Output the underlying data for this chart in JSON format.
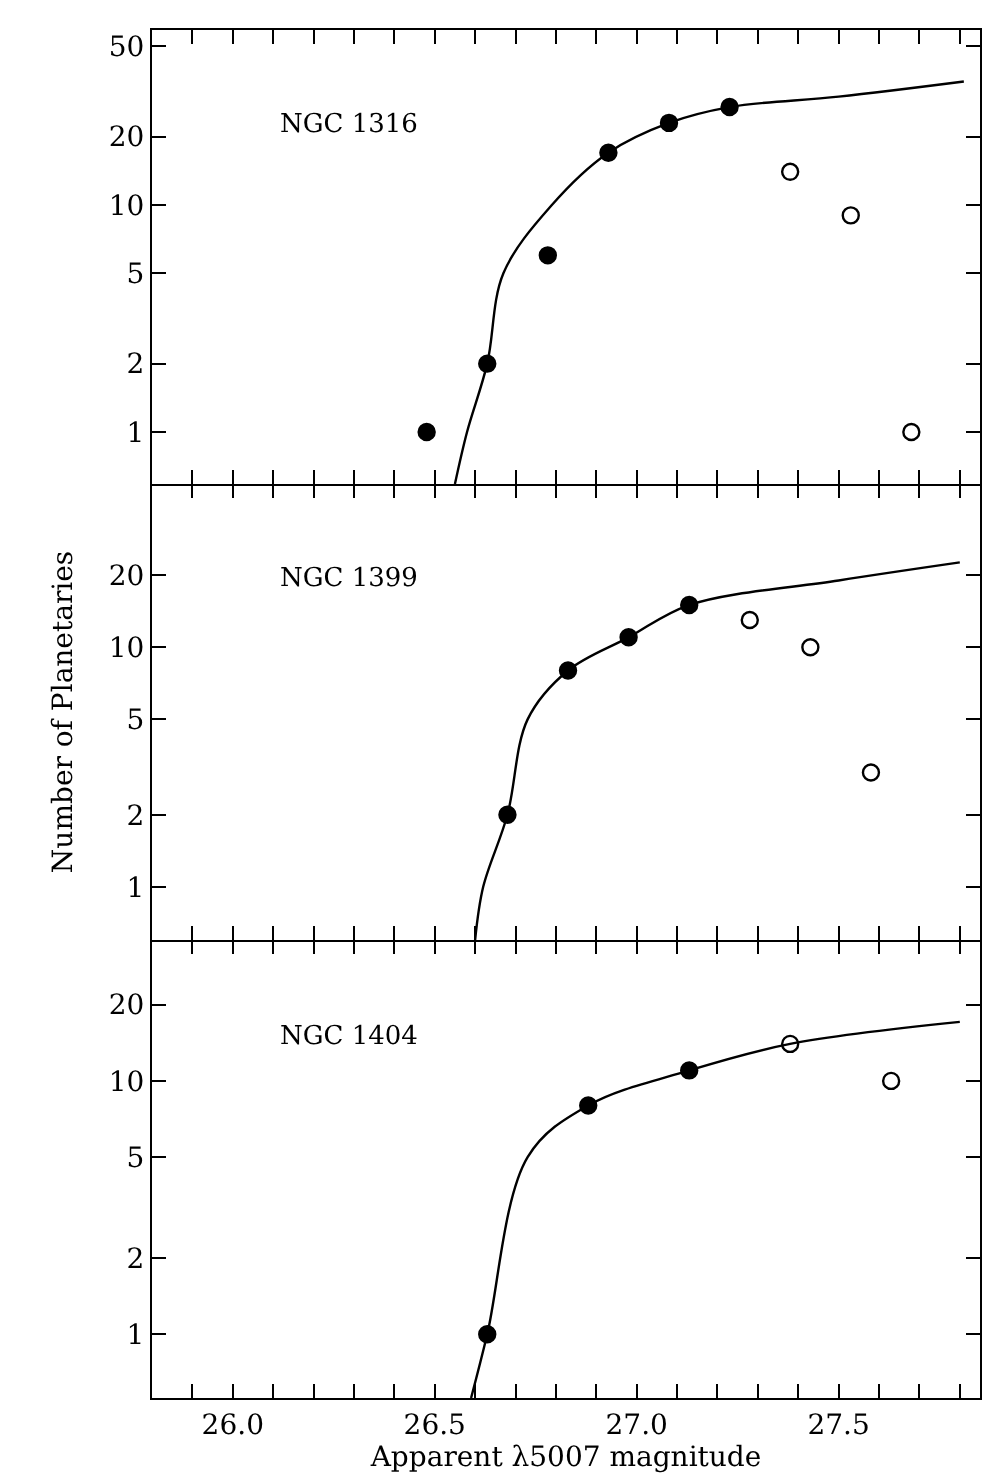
{
  "chart_data": [
    {
      "type": "scatter",
      "annotations": [
        "NGC 1316"
      ],
      "log": "y",
      "xlim": [
        25.8,
        27.85
      ],
      "ylim": [
        0.59,
        59
      ],
      "tick_labels": "y",
      "grid": false,
      "xticks": [
        {
          "value": 25.9,
          "label": null
        },
        {
          "value": 26.0,
          "label": null
        },
        {
          "value": 26.1,
          "label": null
        },
        {
          "value": 26.2,
          "label": null
        },
        {
          "value": 26.3,
          "label": null
        },
        {
          "value": 26.4,
          "label": null
        },
        {
          "value": 26.5,
          "label": null
        },
        {
          "value": 26.6,
          "label": null
        },
        {
          "value": 26.7,
          "label": null
        },
        {
          "value": 26.8,
          "label": null
        },
        {
          "value": 26.9,
          "label": null
        },
        {
          "value": 27.0,
          "label": null
        },
        {
          "value": 27.1,
          "label": null
        },
        {
          "value": 27.2,
          "label": null
        },
        {
          "value": 27.3,
          "label": null
        },
        {
          "value": 27.4,
          "label": null
        },
        {
          "value": 27.5,
          "label": null
        },
        {
          "value": 27.6,
          "label": null
        },
        {
          "value": 27.7,
          "label": null
        },
        {
          "value": 27.8,
          "label": null
        }
      ],
      "yticks": [
        1,
        2,
        5,
        10,
        20,
        50
      ],
      "series": [
        {
          "marker": "circle",
          "color": "#000000",
          "x": [
            26.48,
            26.63,
            26.78,
            26.93,
            27.08,
            27.23
          ],
          "values": [
            1,
            2,
            6,
            17,
            23,
            27
          ]
        },
        {
          "marker": "circle",
          "color": "#ffffff",
          "x": [
            27.38,
            27.53,
            27.68
          ],
          "values": [
            14,
            9,
            1
          ]
        },
        {
          "type": "line",
          "marker": "none",
          "color": "#000000",
          "x": [
            26.55,
            26.58,
            26.63,
            26.67,
            26.79,
            26.93,
            27.08,
            27.23,
            27.5,
            27.81
          ],
          "values": [
            0.59,
            1,
            2,
            5,
            10,
            17,
            23,
            27,
            30,
            35
          ]
        }
      ]
    },
    {
      "type": "scatter",
      "annotations": [
        "NGC 1399"
      ],
      "ylabel": "Number of Planetaries",
      "log": "y",
      "xlim": [
        25.8,
        27.85
      ],
      "ylim": [
        0.6,
        48
      ],
      "tick_labels": "y",
      "grid": false,
      "xticks": [
        {
          "value": 25.9,
          "label": null
        },
        {
          "value": 26.0,
          "label": null
        },
        {
          "value": 26.1,
          "label": null
        },
        {
          "value": 26.2,
          "label": null
        },
        {
          "value": 26.3,
          "label": null
        },
        {
          "value": 26.4,
          "label": null
        },
        {
          "value": 26.5,
          "label": null
        },
        {
          "value": 26.6,
          "label": null
        },
        {
          "value": 26.7,
          "label": null
        },
        {
          "value": 26.8,
          "label": null
        },
        {
          "value": 26.9,
          "label": null
        },
        {
          "value": 27.0,
          "label": null
        },
        {
          "value": 27.1,
          "label": null
        },
        {
          "value": 27.2,
          "label": null
        },
        {
          "value": 27.3,
          "label": null
        },
        {
          "value": 27.4,
          "label": null
        },
        {
          "value": 27.5,
          "label": null
        },
        {
          "value": 27.6,
          "label": null
        },
        {
          "value": 27.7,
          "label": null
        },
        {
          "value": 27.8,
          "label": null
        }
      ],
      "yticks": [
        1,
        2,
        5,
        10,
        20
      ],
      "series": [
        {
          "marker": "circle",
          "color": "#000000",
          "x": [
            26.68,
            26.83,
            26.98,
            27.13
          ],
          "values": [
            2,
            8,
            11,
            15
          ]
        },
        {
          "marker": "circle",
          "color": "#ffffff",
          "x": [
            27.28,
            27.43,
            27.58
          ],
          "values": [
            13,
            10,
            3
          ]
        },
        {
          "type": "line",
          "marker": "none",
          "color": "#000000",
          "x": [
            26.6,
            26.62,
            26.68,
            26.73,
            26.83,
            26.98,
            27.13,
            27.5,
            27.8
          ],
          "values": [
            0.6,
            1,
            2,
            5,
            8,
            11,
            15,
            19,
            22.6
          ]
        }
      ]
    },
    {
      "type": "scatter",
      "annotations": [
        "NGC 1404"
      ],
      "xlabel": "Apparent λ5007 magnitude",
      "log": "y",
      "xlim": [
        25.8,
        27.85
      ],
      "ylim": [
        0.56,
        36
      ],
      "grid": false,
      "xticks": [
        {
          "value": 25.9,
          "label": null
        },
        {
          "value": 26,
          "label": "26.0"
        },
        {
          "value": 26.1,
          "label": null
        },
        {
          "value": 26.2,
          "label": null
        },
        {
          "value": 26.3,
          "label": null
        },
        {
          "value": 26.4,
          "label": null
        },
        26.5,
        {
          "value": 26.6,
          "label": null
        },
        {
          "value": 26.7,
          "label": null
        },
        {
          "value": 26.8,
          "label": null
        },
        {
          "value": 26.9,
          "label": null
        },
        {
          "value": 27,
          "label": "27.0"
        },
        {
          "value": 27.1,
          "label": null
        },
        {
          "value": 27.2,
          "label": null
        },
        {
          "value": 27.3,
          "label": null
        },
        {
          "value": 27.4,
          "label": null
        },
        27.5,
        {
          "value": 27.6,
          "label": null
        },
        {
          "value": 27.7,
          "label": null
        },
        {
          "value": 27.8,
          "label": null
        }
      ],
      "yticks": [
        1,
        2,
        5,
        10,
        20
      ],
      "series": [
        {
          "marker": "circle",
          "color": "#000000",
          "x": [
            26.63,
            26.88,
            27.13
          ],
          "values": [
            1,
            8,
            11
          ]
        },
        {
          "marker": "circle",
          "color": "#ffffff",
          "x": [
            27.38,
            27.63
          ],
          "values": [
            14,
            10
          ]
        },
        {
          "type": "line",
          "marker": "none",
          "color": "#000000",
          "x": [
            26.59,
            26.63,
            26.73,
            26.88,
            27.13,
            27.38,
            27.8
          ],
          "values": [
            0.56,
            1,
            5,
            8,
            11,
            14,
            17.1
          ]
        }
      ]
    }
  ]
}
